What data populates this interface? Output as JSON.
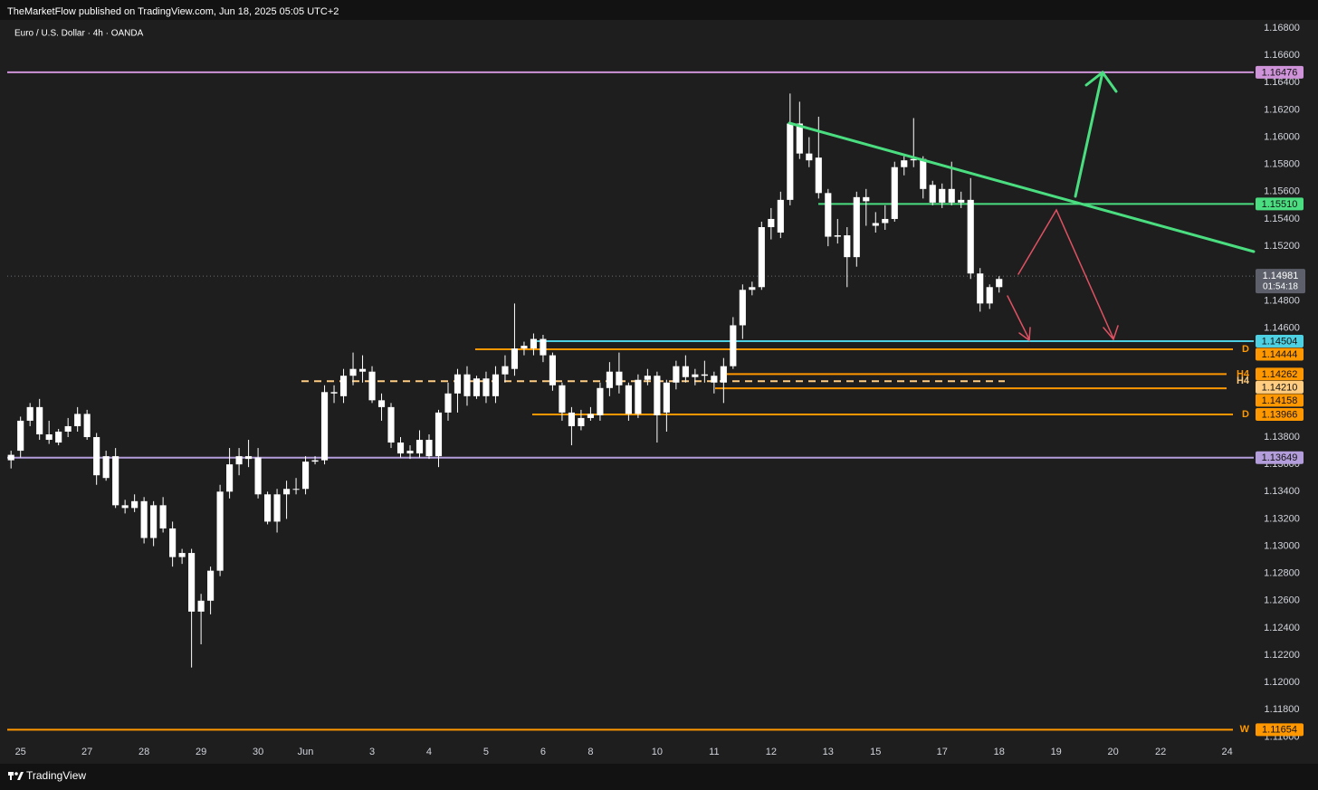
{
  "header": {
    "publisher": "TheMarketFlow published on TradingView.com, Jun 18, 2025 05:05 UTC+2",
    "brand": "TradingView"
  },
  "chart_data": {
    "type": "candlestick",
    "title": "Euro / U.S. Dollar · 4h · OANDA",
    "open": [
      1.1367,
      1.137,
      1.1392,
      1.1402,
      1.1382,
      1.1376,
      1.1384,
      1.1388,
      1.1397,
      1.138,
      1.1366,
      1.1366,
      1.133,
      1.1328,
      1.1333,
      1.1306,
      1.133,
      1.1313,
      1.1292,
      1.1295,
      1.1252,
      1.126,
      1.1282,
      1.134,
      1.136,
      1.1366,
      1.1365,
      1.1338,
      1.1318,
      1.1338,
      1.1342,
      1.1342,
      1.1362,
      1.1363,
      1.1413,
      1.141,
      1.1425,
      1.143,
      1.1428,
      1.1407,
      1.1402,
      1.1376,
      1.1368,
      1.1368,
      1.1378,
      1.1366,
      1.1398,
      1.1412,
      1.1426,
      1.141,
      1.1423,
      1.141,
      1.1426,
      1.143,
      1.1445,
      1.1445,
      1.1452,
      1.144,
      1.1418,
      1.1398,
      1.1388,
      1.1394,
      1.1396,
      1.1416,
      1.1428,
      1.1418,
      1.1397,
      1.1422,
      1.1425,
      1.1398,
      1.142,
      1.1432,
      1.1424,
      1.1426,
      1.1425,
      1.142,
      1.1432,
      1.1462,
      1.1488,
      1.149,
      1.1534,
      1.153,
      1.1554,
      1.161,
      1.1588,
      1.1585,
      1.1559,
      1.1527,
      1.1528,
      1.1512,
      1.1556,
      1.1535,
      1.1537,
      1.154,
      1.1578,
      1.1583,
      1.1584,
      1.1565,
      1.1552,
      1.1562,
      1.1552,
      1.1554,
      1.15,
      1.1478,
      1.149
    ],
    "high": [
      1.137,
      1.1395,
      1.1405,
      1.1408,
      1.1392,
      1.1386,
      1.1394,
      1.1402,
      1.14,
      1.1383,
      1.137,
      1.1372,
      1.1334,
      1.1338,
      1.1336,
      1.1333,
      1.1336,
      1.1318,
      1.1298,
      1.1298,
      1.1265,
      1.1285,
      1.1345,
      1.1372,
      1.1372,
      1.1378,
      1.1372,
      1.134,
      1.1342,
      1.1348,
      1.135,
      1.1366,
      1.1366,
      1.1418,
      1.1418,
      1.143,
      1.1442,
      1.144,
      1.1432,
      1.1412,
      1.1405,
      1.138,
      1.1374,
      1.1385,
      1.1382,
      1.14,
      1.142,
      1.143,
      1.1432,
      1.1425,
      1.1428,
      1.1432,
      1.144,
      1.1478,
      1.145,
      1.1456,
      1.1455,
      1.1442,
      1.142,
      1.1402,
      1.14,
      1.1402,
      1.142,
      1.1435,
      1.1442,
      1.142,
      1.1426,
      1.143,
      1.1428,
      1.1422,
      1.1436,
      1.144,
      1.143,
      1.1436,
      1.1428,
      1.1438,
      1.1468,
      1.1492,
      1.1494,
      1.1538,
      1.1548,
      1.156,
      1.1632,
      1.1626,
      1.16,
      1.1615,
      1.1562,
      1.154,
      1.1534,
      1.156,
      1.1562,
      1.1545,
      1.155,
      1.1582,
      1.1586,
      1.1614,
      1.1586,
      1.1568,
      1.1566,
      1.1582,
      1.156,
      1.157,
      1.1504,
      1.1492,
      1.1498
    ],
    "low": [
      1.1357,
      1.1365,
      1.1388,
      1.1378,
      1.1375,
      1.1374,
      1.138,
      1.1384,
      1.1378,
      1.1345,
      1.1348,
      1.1328,
      1.1324,
      1.1325,
      1.1302,
      1.13,
      1.131,
      1.1285,
      1.1287,
      1.1211,
      1.1228,
      1.125,
      1.1278,
      1.1335,
      1.1352,
      1.1358,
      1.1335,
      1.1316,
      1.131,
      1.132,
      1.1338,
      1.1338,
      1.136,
      1.136,
      1.1405,
      1.1405,
      1.1418,
      1.142,
      1.1405,
      1.1392,
      1.1372,
      1.1365,
      1.1364,
      1.1365,
      1.1364,
      1.1358,
      1.1392,
      1.1398,
      1.1403,
      1.1408,
      1.1405,
      1.1405,
      1.142,
      1.1425,
      1.144,
      1.144,
      1.1435,
      1.1414,
      1.1392,
      1.1374,
      1.1385,
      1.1392,
      1.1392,
      1.141,
      1.1412,
      1.1392,
      1.1394,
      1.1418,
      1.1376,
      1.1384,
      1.1415,
      1.142,
      1.1418,
      1.142,
      1.1412,
      1.1405,
      1.143,
      1.1452,
      1.1484,
      1.1488,
      1.1525,
      1.1526,
      1.155,
      1.1584,
      1.1578,
      1.1555,
      1.152,
      1.1522,
      1.149,
      1.1505,
      1.1535,
      1.153,
      1.1532,
      1.1538,
      1.1572,
      1.1578,
      1.1555,
      1.155,
      1.1548,
      1.155,
      1.1548,
      1.1496,
      1.1472,
      1.1474,
      1.1486
    ],
    "close": [
      1.1363,
      1.1392,
      1.1402,
      1.1382,
      1.1378,
      1.1384,
      1.1388,
      1.1397,
      1.138,
      1.1352,
      1.135,
      1.133,
      1.1328,
      1.1333,
      1.1306,
      1.133,
      1.1313,
      1.1292,
      1.1295,
      1.1252,
      1.126,
      1.1282,
      1.134,
      1.136,
      1.1366,
      1.1364,
      1.1338,
      1.1318,
      1.1338,
      1.1342,
      1.1342,
      1.1362,
      1.1363,
      1.1413,
      1.1412,
      1.1425,
      1.143,
      1.1428,
      1.1407,
      1.1402,
      1.1376,
      1.1368,
      1.137,
      1.1378,
      1.1366,
      1.1398,
      1.1412,
      1.1426,
      1.141,
      1.1423,
      1.141,
      1.1426,
      1.1432,
      1.1445,
      1.1447,
      1.1452,
      1.144,
      1.1418,
      1.1398,
      1.1388,
      1.1394,
      1.1397,
      1.1416,
      1.1428,
      1.1418,
      1.1397,
      1.1422,
      1.1425,
      1.1396,
      1.142,
      1.1432,
      1.1424,
      1.1426,
      1.1425,
      1.142,
      1.1432,
      1.1462,
      1.1488,
      1.149,
      1.1534,
      1.154,
      1.1554,
      1.161,
      1.1588,
      1.1583,
      1.1559,
      1.1527,
      1.1528,
      1.1512,
      1.1556,
      1.1553,
      1.1537,
      1.154,
      1.1578,
      1.1583,
      1.1584,
      1.1562,
      1.1552,
      1.1562,
      1.1552,
      1.1554,
      1.15,
      1.1478,
      1.149,
      1.1496
    ],
    "candle_color": "#ffffff",
    "xlim": [
      -0.4,
      130.8
    ],
    "xticks": [
      {
        "value": 1,
        "label": "25"
      },
      {
        "value": 8,
        "label": "27"
      },
      {
        "value": 14,
        "label": "28"
      },
      {
        "value": 20,
        "label": "29"
      },
      {
        "value": 26,
        "label": "30"
      },
      {
        "value": 31,
        "label": "Jun"
      },
      {
        "value": 38,
        "label": "3"
      },
      {
        "value": 44,
        "label": "4"
      },
      {
        "value": 50,
        "label": "5"
      },
      {
        "value": 56,
        "label": "6"
      },
      {
        "value": 61,
        "label": "8"
      },
      {
        "value": 68,
        "label": "10"
      },
      {
        "value": 74,
        "label": "11"
      },
      {
        "value": 80,
        "label": "12"
      },
      {
        "value": 86,
        "label": "13"
      },
      {
        "value": 91,
        "label": "15"
      },
      {
        "value": 98,
        "label": "17"
      },
      {
        "value": 104,
        "label": "18"
      },
      {
        "value": 110,
        "label": "19"
      },
      {
        "value": 116,
        "label": "20"
      },
      {
        "value": 121,
        "label": "22"
      },
      {
        "value": 128,
        "label": "24"
      }
    ],
    "ylim": [
      1.1155,
      1.1686
    ],
    "yticks": [
      {
        "value": 1.168,
        "label": "1.16800"
      },
      {
        "value": 1.166,
        "label": "1.16600"
      },
      {
        "value": 1.164,
        "label": "1.16400"
      },
      {
        "value": 1.162,
        "label": "1.16200"
      },
      {
        "value": 1.16,
        "label": "1.16000"
      },
      {
        "value": 1.158,
        "label": "1.15800"
      },
      {
        "value": 1.156,
        "label": "1.15600"
      },
      {
        "value": 1.154,
        "label": "1.15400"
      },
      {
        "value": 1.152,
        "label": "1.15200"
      },
      {
        "value": 1.148,
        "label": "1.14800"
      },
      {
        "value": 1.146,
        "label": "1.14600"
      },
      {
        "value": 1.138,
        "label": "1.13800"
      },
      {
        "value": 1.136,
        "label": "1.13600"
      },
      {
        "value": 1.134,
        "label": "1.13400"
      },
      {
        "value": 1.132,
        "label": "1.13200"
      },
      {
        "value": 1.13,
        "label": "1.13000"
      },
      {
        "value": 1.128,
        "label": "1.12800"
      },
      {
        "value": 1.126,
        "label": "1.12600"
      },
      {
        "value": 1.124,
        "label": "1.12400"
      },
      {
        "value": 1.122,
        "label": "1.12200"
      },
      {
        "value": 1.12,
        "label": "1.12000"
      },
      {
        "value": 1.118,
        "label": "1.11800"
      },
      {
        "value": 1.116,
        "label": "1.11600"
      }
    ],
    "grid": false,
    "levels": [
      {
        "value": 1.16476,
        "color": "#ce93d8"
      },
      {
        "value": 1.1551,
        "label": "1.15510",
        "color": "#4ade80"
      },
      {
        "value": 1.14504,
        "color": "#4dd0e1"
      },
      {
        "value": 1.14444,
        "color": "#ff9800",
        "tag": "D"
      },
      {
        "value": 1.14262,
        "color": "#ff9800",
        "tag": "H4"
      },
      {
        "value": 1.1421,
        "label": "1.14210",
        "color": "#ffcc80",
        "tag": "H4"
      },
      {
        "value": 1.14158,
        "color": "#ff9800"
      },
      {
        "value": 1.13966,
        "color": "#ff9800",
        "tag": "D"
      },
      {
        "value": 1.13649,
        "color": "#b39ddb"
      },
      {
        "value": 1.11654,
        "color": "#ff9800",
        "tag": "W"
      }
    ],
    "last": {
      "value": 1.14981,
      "countdown": "01:54:18",
      "color": "#5d606b"
    }
  }
}
